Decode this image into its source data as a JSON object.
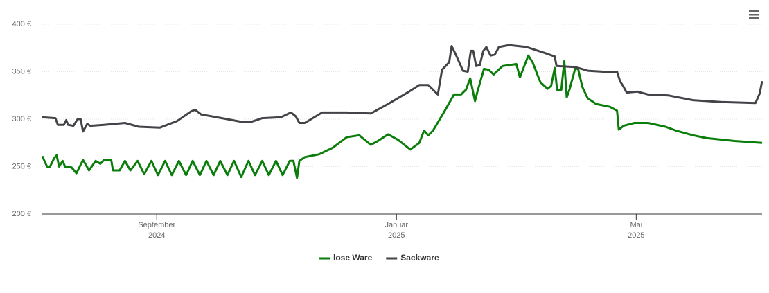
{
  "chart_data": {
    "type": "line",
    "xlim": [
      6.09,
      18.1
    ],
    "ylim": [
      200,
      400
    ],
    "xticks": [
      {
        "value": 8,
        "label": "September",
        "sublabel": "2024"
      },
      {
        "value": 12,
        "label": "Januar",
        "sublabel": "2025"
      },
      {
        "value": 16,
        "label": "Mai",
        "sublabel": "2025"
      }
    ],
    "yticks": [
      {
        "value": 200,
        "label": "200 €"
      },
      {
        "value": 250,
        "label": "250 €"
      },
      {
        "value": 300,
        "label": "300 €"
      },
      {
        "value": 350,
        "label": "350 €"
      },
      {
        "value": 400,
        "label": "400 €"
      }
    ],
    "grid": true,
    "legend": "bottom",
    "series": [
      {
        "name": "lose Ware",
        "color": "#0a7d0a",
        "x": [
          6.09,
          6.17,
          6.22,
          6.29,
          6.33,
          6.37,
          6.43,
          6.47,
          6.58,
          6.66,
          6.77,
          6.87,
          6.98,
          7.06,
          7.12,
          7.24,
          7.27,
          7.38,
          7.47,
          7.56,
          7.68,
          7.79,
          7.91,
          8.02,
          8.14,
          8.25,
          8.37,
          8.49,
          8.6,
          8.72,
          8.83,
          8.95,
          9.06,
          9.18,
          9.29,
          9.41,
          9.53,
          9.64,
          9.76,
          9.87,
          9.99,
          10.1,
          10.22,
          10.28,
          10.34,
          10.38,
          10.47,
          10.71,
          10.94,
          11.17,
          11.38,
          11.57,
          11.69,
          11.86,
          12.03,
          12.23,
          12.38,
          12.46,
          12.53,
          12.61,
          12.79,
          12.96,
          13.08,
          13.11,
          13.16,
          13.23,
          13.31,
          13.36,
          13.46,
          13.54,
          13.62,
          13.77,
          14.0,
          14.06,
          14.12,
          14.2,
          14.27,
          14.4,
          14.52,
          14.58,
          14.64,
          14.68,
          14.75,
          14.8,
          14.84,
          14.89,
          14.98,
          15.03,
          15.1,
          15.19,
          15.33,
          15.56,
          15.68,
          15.71,
          15.79,
          15.97,
          16.2,
          16.49,
          16.66,
          16.95,
          17.18,
          17.64,
          18.1
        ],
        "values": [
          261,
          250,
          250,
          259,
          262,
          250,
          256,
          250,
          249,
          243,
          257,
          246,
          256,
          253,
          257,
          257,
          246,
          246,
          256,
          246,
          256,
          242,
          256,
          241,
          256,
          241,
          256,
          241,
          256,
          241,
          256,
          241,
          256,
          241,
          256,
          239,
          256,
          241,
          256,
          241,
          256,
          241,
          256,
          256,
          238,
          256,
          260,
          263,
          270,
          281,
          283,
          273,
          277,
          284,
          278,
          268,
          275,
          288,
          283,
          288,
          307,
          326,
          326,
          328,
          331,
          343,
          319,
          331,
          353,
          352,
          347,
          356,
          358,
          344,
          354,
          367,
          360,
          339,
          332,
          335,
          354,
          331,
          331,
          361,
          323,
          332,
          353,
          353,
          334,
          322,
          316,
          313,
          309,
          289,
          293,
          296,
          296,
          292,
          288,
          283,
          280,
          277,
          275
        ]
      },
      {
        "name": "Sackware",
        "color": "#434348",
        "x": [
          6.09,
          6.31,
          6.35,
          6.45,
          6.49,
          6.52,
          6.61,
          6.68,
          6.73,
          6.77,
          6.84,
          6.89,
          7.12,
          7.47,
          7.7,
          8.05,
          8.34,
          8.57,
          8.64,
          8.74,
          9.09,
          9.43,
          9.57,
          9.76,
          10.07,
          10.24,
          10.32,
          10.38,
          10.47,
          10.76,
          11.17,
          11.57,
          11.86,
          12.21,
          12.38,
          12.53,
          12.69,
          12.76,
          12.88,
          12.92,
          12.99,
          13.11,
          13.19,
          13.24,
          13.28,
          13.33,
          13.39,
          13.45,
          13.5,
          13.57,
          13.64,
          13.71,
          13.88,
          14.17,
          14.46,
          14.64,
          14.67,
          14.98,
          15.19,
          15.45,
          15.68,
          15.73,
          15.79,
          15.84,
          16.02,
          16.2,
          16.54,
          16.95,
          17.41,
          17.99,
          18.06,
          18.1
        ],
        "values": [
          302,
          301,
          294,
          294,
          299,
          294,
          293,
          300,
          300,
          287,
          295,
          293,
          294,
          296,
          292,
          291,
          298,
          308,
          310,
          305,
          301,
          297,
          297,
          301,
          302,
          307,
          303,
          296,
          296,
          307,
          307,
          306,
          316,
          329,
          336,
          336,
          326,
          352,
          360,
          377,
          368,
          351,
          350,
          372,
          372,
          356,
          357,
          372,
          376,
          367,
          368,
          376,
          378,
          376,
          370,
          366,
          356,
          355,
          351,
          350,
          350,
          340,
          334,
          328,
          329,
          326,
          325,
          320,
          318,
          317,
          327,
          340
        ]
      }
    ]
  }
}
